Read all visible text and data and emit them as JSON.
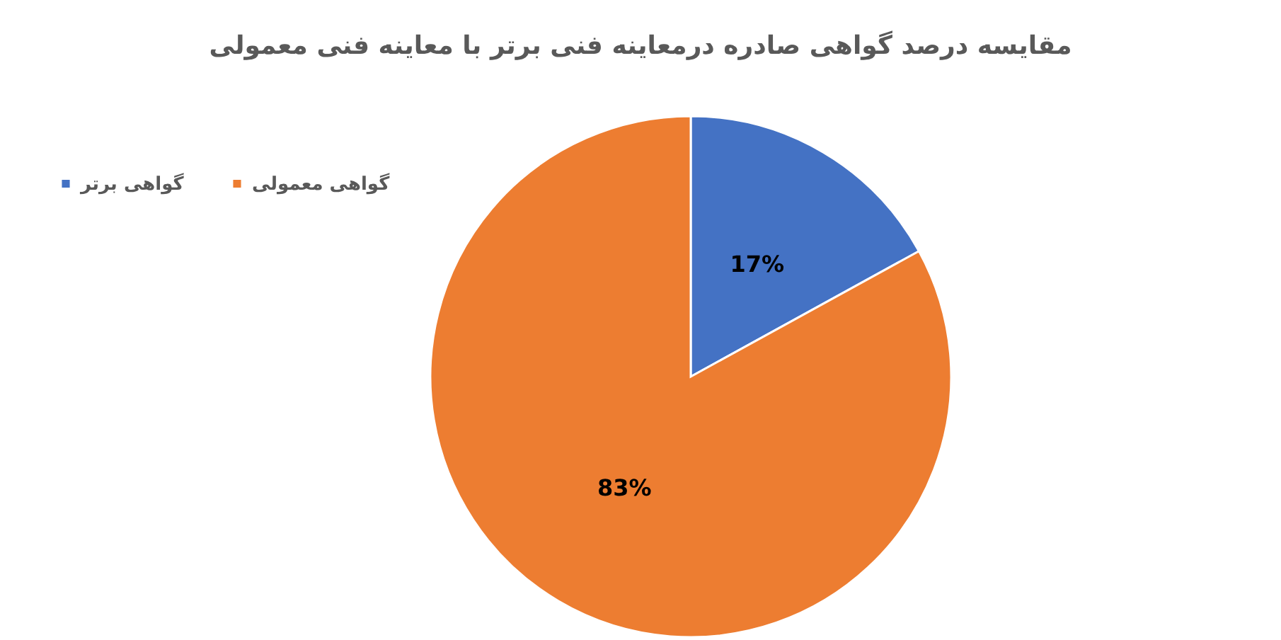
{
  "chart_data": {
    "type": "pie",
    "title": "مقایسه درصد گواهی صادره درمعاینه فنی برتر با معاینه فنی معمولی",
    "categories": [
      "گواهی برتر",
      "گواهی معمولی"
    ],
    "values": [
      17,
      83
    ],
    "colors": [
      "#4472c4",
      "#ed7d31"
    ],
    "value_labels": [
      "17%",
      "83%"
    ],
    "legend": "top left"
  }
}
